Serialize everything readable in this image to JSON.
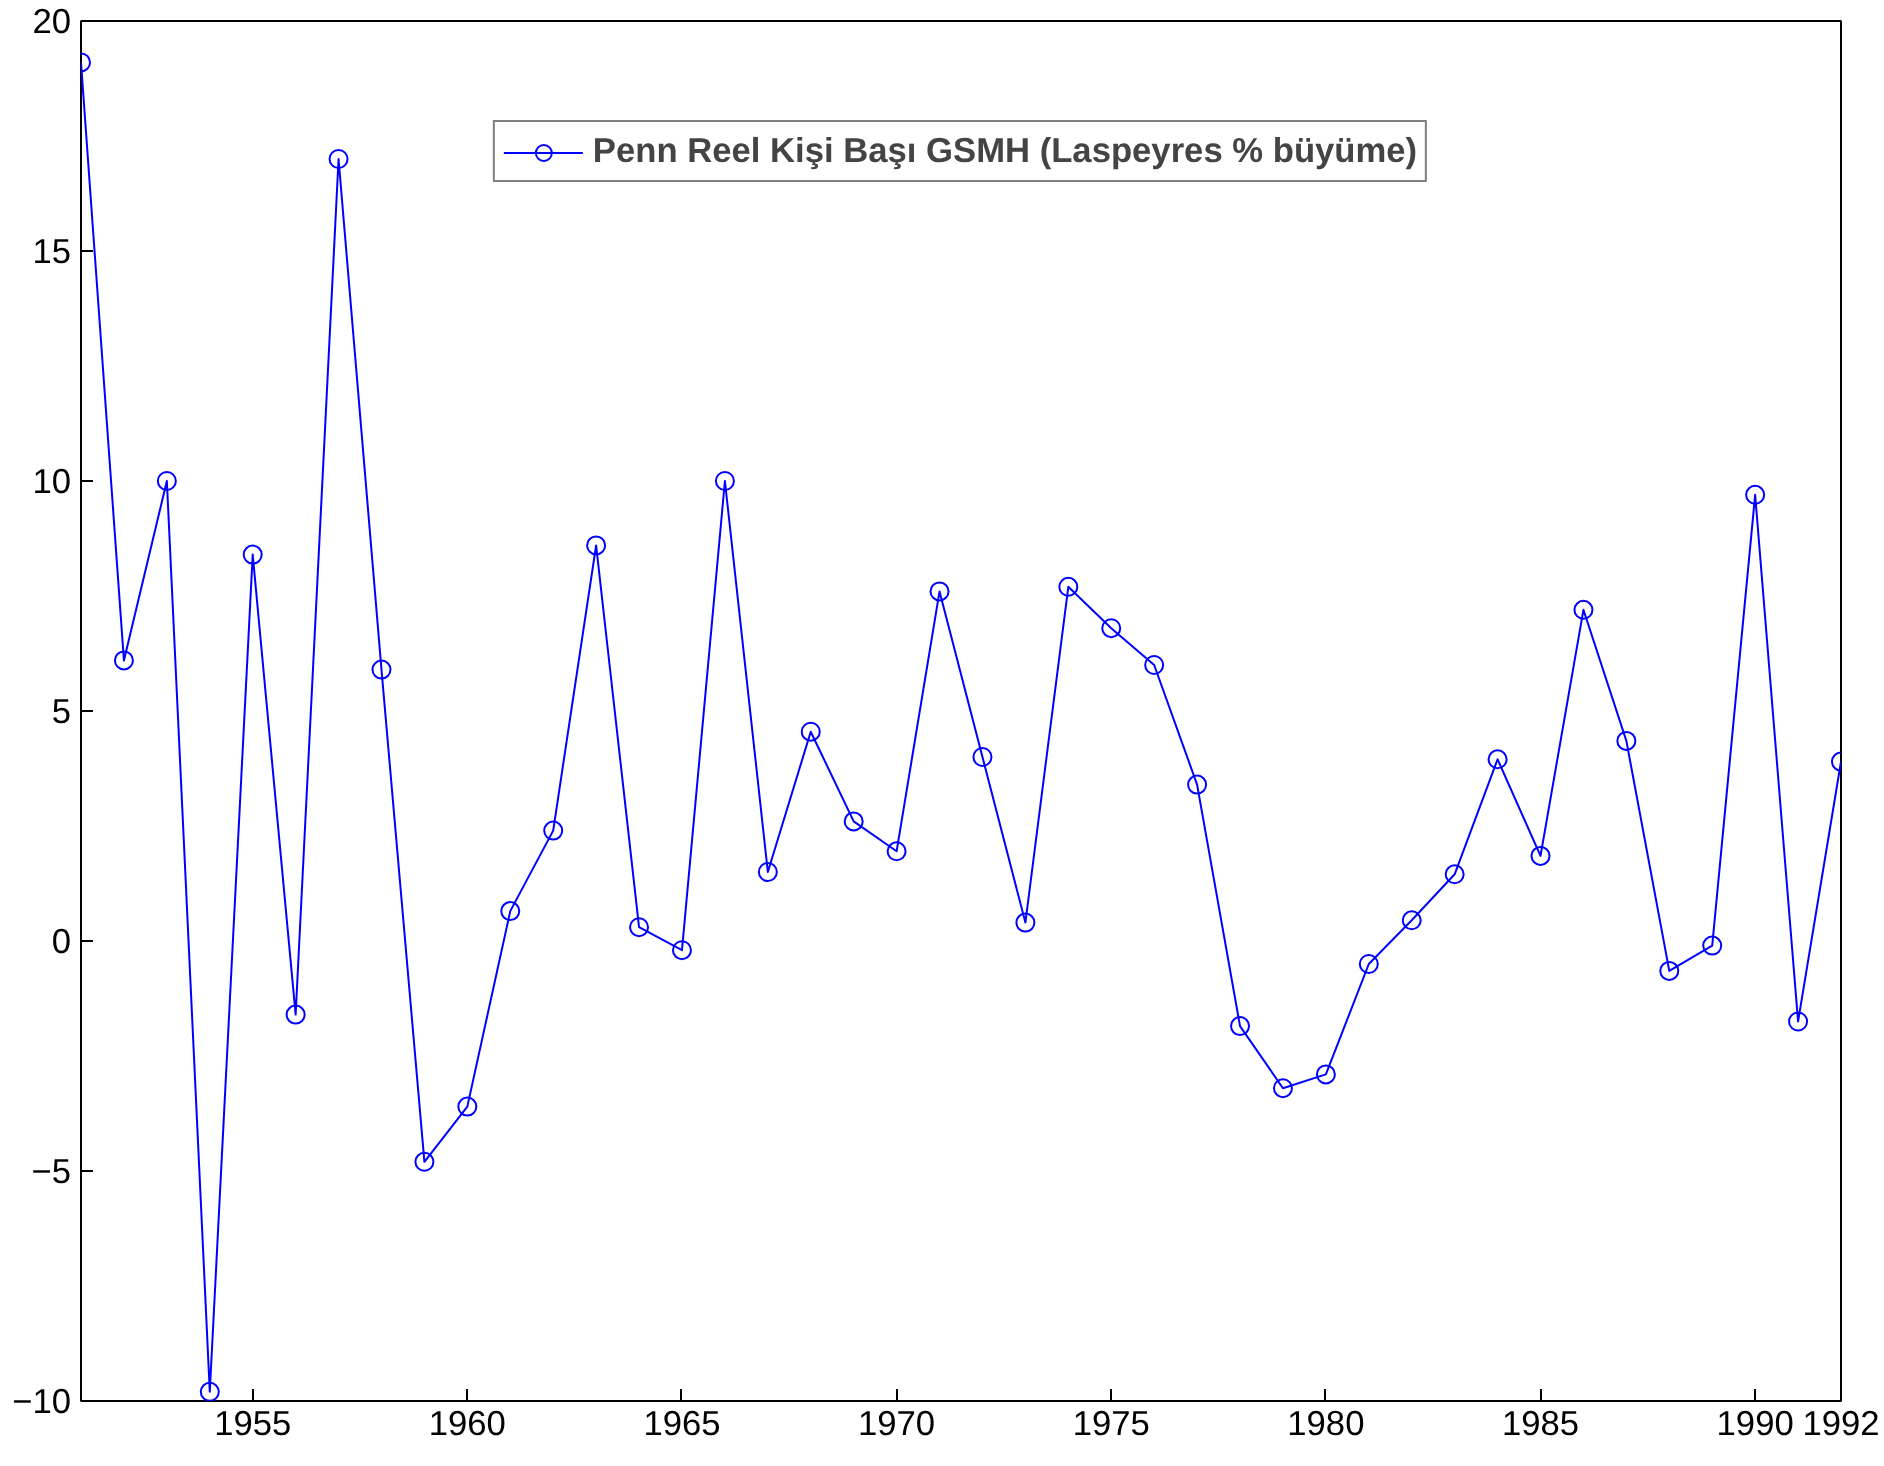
{
  "chart_data": {
    "type": "line",
    "x": [
      1951,
      1952,
      1953,
      1954,
      1955,
      1956,
      1957,
      1958,
      1959,
      1960,
      1961,
      1962,
      1963,
      1964,
      1965,
      1966,
      1967,
      1968,
      1969,
      1970,
      1971,
      1972,
      1973,
      1974,
      1975,
      1976,
      1977,
      1978,
      1979,
      1980,
      1981,
      1982,
      1983,
      1984,
      1985,
      1986,
      1987,
      1988,
      1989,
      1990,
      1991,
      1992
    ],
    "series": [
      {
        "name": "Penn Reel Kişi Başı GSMH (Laspeyres % büyüme)",
        "color": "#0000ff",
        "values": [
          19.1,
          6.1,
          10.0,
          -9.8,
          8.4,
          -1.6,
          17.0,
          5.9,
          -4.8,
          -3.6,
          0.65,
          2.4,
          8.6,
          0.3,
          -0.2,
          10.0,
          1.5,
          4.55,
          2.6,
          1.95,
          7.6,
          4.0,
          0.4,
          7.7,
          6.8,
          6.0,
          3.4,
          -1.85,
          -3.2,
          -2.9,
          -0.5,
          0.45,
          1.45,
          3.95,
          1.85,
          7.2,
          4.35,
          -0.65,
          -0.1,
          9.7,
          -1.75,
          3.9
        ]
      }
    ],
    "xlim": [
      1951,
      1992
    ],
    "xticks": [
      1955,
      1960,
      1965,
      1970,
      1975,
      1980,
      1985,
      1990,
      1992
    ],
    "ylim": [
      -10,
      20
    ],
    "yticks": [
      -10,
      -5,
      0,
      5,
      10,
      15,
      20
    ],
    "grid": false,
    "legend": "top",
    "marker": "circle",
    "line_style": "solid"
  }
}
